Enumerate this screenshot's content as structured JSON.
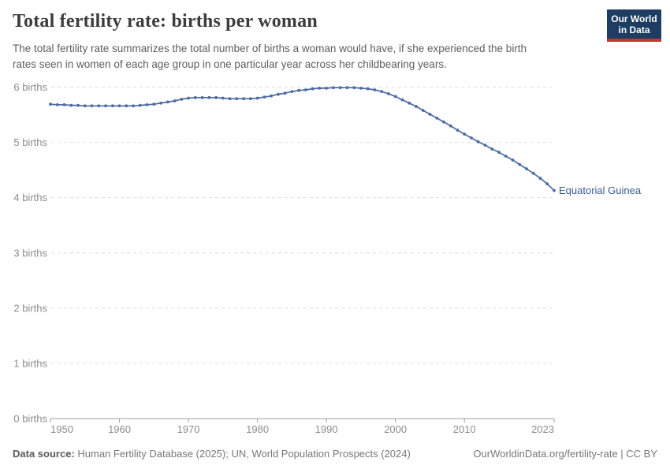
{
  "header": {
    "title": "Total fertility rate: births per woman",
    "subtitle_lines": [
      "The total fertility rate summarizes the total number of births a woman would have, if she experienced the birth",
      "rates seen in women of each age group in one particular year across her childbearing years."
    ],
    "logo": {
      "line1": "Our World",
      "line2": "in Data"
    }
  },
  "chart_data": {
    "type": "line",
    "title": "Total fertility rate: births per woman",
    "xlabel": "",
    "ylabel": "births per woman",
    "xlim": [
      1950,
      2023
    ],
    "ylim": [
      0,
      6.35
    ],
    "x_ticks": [
      1950,
      1960,
      1970,
      1980,
      1990,
      2000,
      2010,
      2023
    ],
    "y_ticks": [
      0,
      1,
      2,
      3,
      4,
      5,
      6
    ],
    "y_tick_label_suffix": " births",
    "grid": "horizontal-dashed",
    "grid_color": "#dedede",
    "axis_color": "#a3a3a3",
    "legend_position": "end-of-line-label",
    "series": [
      {
        "name": "Equatorial Guinea",
        "color": "#4c6aa3",
        "label_color": "#3a5a94",
        "years": [
          1950,
          1951,
          1952,
          1953,
          1954,
          1955,
          1956,
          1957,
          1958,
          1959,
          1960,
          1961,
          1962,
          1963,
          1964,
          1965,
          1966,
          1967,
          1968,
          1969,
          1970,
          1971,
          1972,
          1973,
          1974,
          1975,
          1976,
          1977,
          1978,
          1979,
          1980,
          1981,
          1982,
          1983,
          1984,
          1985,
          1986,
          1987,
          1988,
          1989,
          1990,
          1991,
          1992,
          1993,
          1994,
          1995,
          1996,
          1997,
          1998,
          1999,
          2000,
          2001,
          2002,
          2003,
          2004,
          2005,
          2006,
          2007,
          2008,
          2009,
          2010,
          2011,
          2012,
          2013,
          2014,
          2015,
          2016,
          2017,
          2018,
          2019,
          2020,
          2021,
          2022,
          2023
        ],
        "values": [
          5.69,
          5.68,
          5.68,
          5.67,
          5.67,
          5.66,
          5.66,
          5.66,
          5.66,
          5.66,
          5.66,
          5.66,
          5.66,
          5.67,
          5.68,
          5.69,
          5.71,
          5.73,
          5.75,
          5.78,
          5.8,
          5.81,
          5.81,
          5.81,
          5.81,
          5.8,
          5.79,
          5.79,
          5.79,
          5.79,
          5.8,
          5.82,
          5.84,
          5.87,
          5.89,
          5.92,
          5.94,
          5.95,
          5.97,
          5.98,
          5.98,
          5.99,
          5.99,
          5.99,
          5.99,
          5.98,
          5.97,
          5.95,
          5.92,
          5.88,
          5.83,
          5.77,
          5.71,
          5.65,
          5.58,
          5.51,
          5.44,
          5.37,
          5.3,
          5.22,
          5.15,
          5.08,
          5.01,
          4.95,
          4.88,
          4.82,
          4.75,
          4.68,
          4.6,
          4.52,
          4.44,
          4.35,
          4.25,
          4.13
        ]
      }
    ]
  },
  "footer": {
    "source_label": "Data source:",
    "source_text": "Human Fertility Database (2025); UN, World Population Prospects (2024)",
    "credit": "OurWorldinData.org/fertility-rate | CC BY"
  }
}
